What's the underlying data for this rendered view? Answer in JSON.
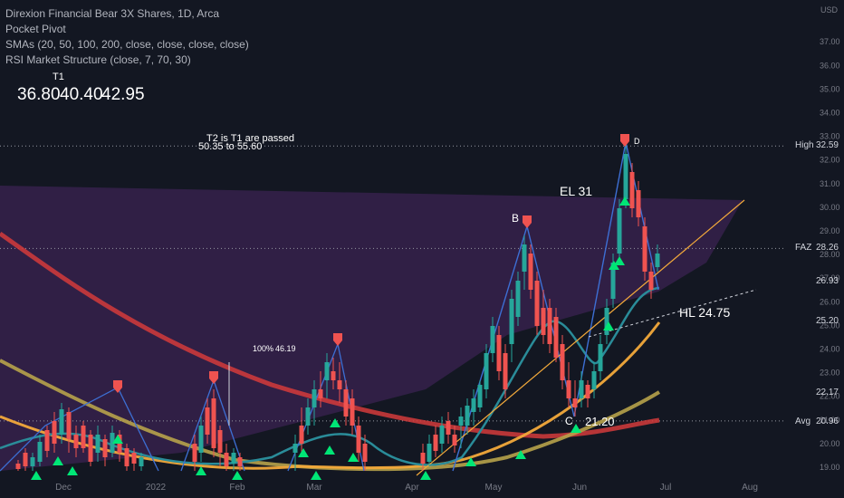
{
  "header": {
    "title": "Direxion Financial Bear 3X Shares, 1D, Arca",
    "indicators": [
      "Pocket Pivot",
      "SMAs (20, 50, 100, 200, close, close, close, close)",
      "RSI Market Structure (close, 7, 70, 30)"
    ]
  },
  "targets": {
    "t1_label": "T1",
    "values": [
      "36.80",
      "40.40",
      "42.95"
    ],
    "note1": "T2 is T1 are passed",
    "note2": "50.35 to 55.60"
  },
  "annotations": {
    "el": "EL  31",
    "hl": "HL 24.75",
    "c_value": "21.20",
    "pct": "100%",
    "pct_value": "46.19",
    "points": {
      "b": "B",
      "c": "C",
      "d": "D"
    }
  },
  "price_tags": [
    {
      "label": "High",
      "value": "32.59",
      "price": 32.59,
      "bg": "#2a2e39",
      "fg": "#ffffff"
    },
    {
      "label": "FAZ",
      "value": "28.26",
      "price": 28.26,
      "bg": "#363a45",
      "fg": "#ffffff"
    },
    {
      "label": "",
      "value": "26.93",
      "price": 26.93,
      "bg": "#1f6f79",
      "fg": "#ffffff"
    },
    {
      "label": "",
      "value": "25.20",
      "price": 25.2,
      "bg": "#f2a93b",
      "fg": "#131722"
    },
    {
      "label": "",
      "value": "22.17",
      "price": 22.17,
      "bg": "#c48a2c",
      "fg": "#131722"
    },
    {
      "label": "Avg",
      "value": "20.96",
      "price": 20.96,
      "bg": "#2a2e39",
      "fg": "#ffffff"
    }
  ],
  "chart_data": {
    "type": "candlestick",
    "currency": "USD",
    "y_ticks": [
      19,
      20,
      21,
      22,
      23,
      24,
      25,
      26,
      27,
      28,
      29,
      30,
      31,
      32,
      33,
      34,
      35,
      36,
      37
    ],
    "ylim": [
      18.8,
      37.7
    ],
    "x_labels": [
      "Dec",
      "2022",
      "Feb",
      "Mar",
      "Apr",
      "May",
      "Jun",
      "Jul",
      "Aug"
    ],
    "high_line": 32.59,
    "last_price_line": 28.26,
    "avg_line": 20.96,
    "sma_colors": {
      "sma20": "#2a8c99",
      "sma50": "#f2a93b",
      "sma100": "#b7a24a",
      "sma200": "#d33b3b"
    },
    "colors": {
      "up": "#26a69a",
      "down": "#ef5350"
    }
  }
}
